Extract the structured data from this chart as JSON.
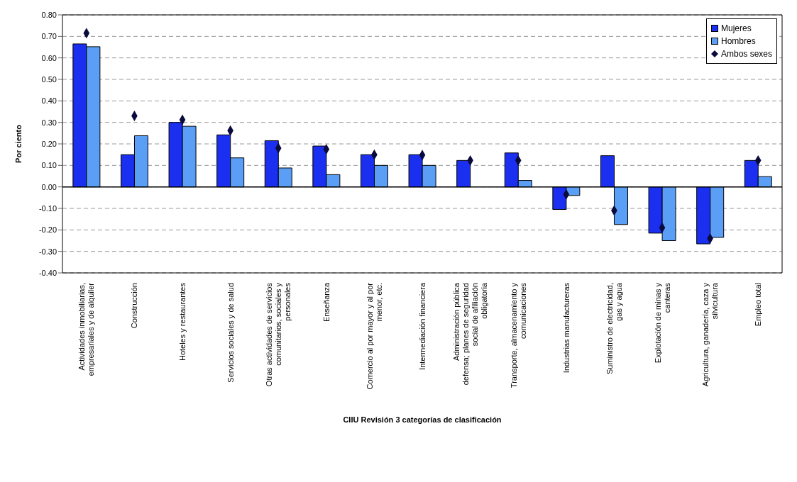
{
  "chart_data": {
    "type": "bar",
    "xlabel": "CIIU Revisión 3 categorías de clasificación",
    "ylabel": "Por ciento",
    "categories": [
      "Actividades inmobiliarias, empresariales y de alquiler",
      "Construcción",
      "Hoteles y restaurantes",
      "Servicios sociales y de salud",
      "Otras actividades de servicios comunitarios, sociales y personales",
      "Enseñanza",
      "Comercio al por mayor y al por menor, etc.",
      "Intermediación financiera",
      "Administración pública defensa; planes de seguridad social de afiliación obligatoria",
      "Transporte, almacenamiento y comunicaciones",
      "Industrias manufactureras",
      "Suministro de electricidad, gas y agua",
      "Explotación de minas y canteras",
      "Agricultura, ganadería, caza y silvicultura",
      "Empleo total"
    ],
    "series": [
      {
        "name": "Mujeres",
        "color": "#1a2ff0",
        "values": [
          0.665,
          0.15,
          0.3,
          0.242,
          0.215,
          0.19,
          0.15,
          0.15,
          0.123,
          0.158,
          -0.105,
          0.145,
          -0.215,
          -0.265,
          0.123
        ]
      },
      {
        "name": "Hombres",
        "color": "#5b9ef5",
        "values": [
          0.652,
          0.238,
          0.282,
          0.135,
          0.088,
          0.057,
          0.1,
          0.1,
          null,
          0.03,
          -0.04,
          -0.175,
          -0.25,
          -0.235,
          0.048
        ]
      },
      {
        "name": "Ambos sexes",
        "type": "scatter",
        "marker": "diamond",
        "color": "#0a0a3c",
        "values": [
          0.715,
          0.33,
          0.312,
          0.262,
          0.18,
          0.175,
          0.15,
          0.148,
          0.123,
          0.123,
          -0.035,
          -0.11,
          -0.19,
          -0.24,
          0.123
        ]
      }
    ],
    "ylim": [
      -0.4,
      0.8
    ],
    "yticks": [
      {
        "value": -0.4,
        "label": "-0.40"
      },
      {
        "value": -0.3,
        "label": "-0.30"
      },
      {
        "value": -0.2,
        "label": "-0.20"
      },
      {
        "value": -0.1,
        "label": "-0.10"
      },
      {
        "value": 0,
        "label": "0.00"
      },
      {
        "value": 0.1,
        "label": "0.10"
      },
      {
        "value": 0.2,
        "label": "0.20"
      },
      {
        "value": 0.3,
        "label": "0.30"
      },
      {
        "value": 0.4,
        "label": "0.40"
      },
      {
        "value": 0.5,
        "label": "0.50"
      },
      {
        "value": 0.6,
        "label": "0.60"
      },
      {
        "value": 0.7,
        "label": "0.70"
      },
      {
        "value": 0.8,
        "label": "0.80"
      }
    ],
    "ref_lines": [
      {
        "axis": "y",
        "value": 0,
        "color": "#000000"
      }
    ],
    "grid": "y",
    "legend": "top right"
  }
}
